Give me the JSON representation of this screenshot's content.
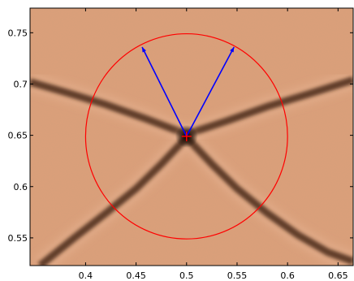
{
  "chart_data": {
    "type": "scatter",
    "title": "",
    "xlabel": "",
    "ylabel": "",
    "xlim": [
      0.345,
      0.665
    ],
    "ylim": [
      0.523,
      0.774
    ],
    "xticks": [
      {
        "value": 0.4,
        "label": "0.4"
      },
      {
        "value": 0.45,
        "label": "0.45"
      },
      {
        "value": 0.5,
        "label": "0.5"
      },
      {
        "value": 0.55,
        "label": "0.55"
      },
      {
        "value": 0.6,
        "label": "0.6"
      },
      {
        "value": 0.65,
        "label": "0.65"
      }
    ],
    "yticks": [
      {
        "value": 0.55,
        "label": "0.55"
      },
      {
        "value": 0.6,
        "label": "0.6"
      },
      {
        "value": 0.65,
        "label": "0.65"
      },
      {
        "value": 0.7,
        "label": "0.7"
      },
      {
        "value": 0.75,
        "label": "0.75"
      }
    ],
    "grid": false,
    "background_image": "grayscale junction image with copper colormap; two dark ridges crossing",
    "center": {
      "x": 0.5,
      "y": 0.649,
      "marker": "+",
      "color": "#ff0000"
    },
    "circle": {
      "cx": 0.5,
      "cy": 0.649,
      "r": 0.1,
      "color": "#ff0000"
    },
    "vectors": [
      {
        "x0": 0.5,
        "y0": 0.649,
        "x1": 0.456,
        "y1": 0.736,
        "color": "#0000ff"
      },
      {
        "x0": 0.5,
        "y0": 0.649,
        "x1": 0.547,
        "y1": 0.736,
        "color": "#0000ff"
      }
    ],
    "ridges": [
      {
        "points": [
          [
            0.345,
            0.702
          ],
          [
            0.38,
            0.692
          ],
          [
            0.42,
            0.68
          ],
          [
            0.46,
            0.666
          ],
          [
            0.5,
            0.651
          ],
          [
            0.54,
            0.664
          ],
          [
            0.58,
            0.678
          ],
          [
            0.62,
            0.69
          ],
          [
            0.665,
            0.704
          ]
        ]
      },
      {
        "points": [
          [
            0.355,
            0.523
          ],
          [
            0.39,
            0.551
          ],
          [
            0.42,
            0.574
          ],
          [
            0.45,
            0.598
          ],
          [
            0.475,
            0.622
          ],
          [
            0.5,
            0.648
          ],
          [
            0.525,
            0.622
          ],
          [
            0.55,
            0.598
          ],
          [
            0.58,
            0.574
          ],
          [
            0.61,
            0.553
          ],
          [
            0.64,
            0.536
          ],
          [
            0.665,
            0.527
          ]
        ]
      }
    ]
  }
}
